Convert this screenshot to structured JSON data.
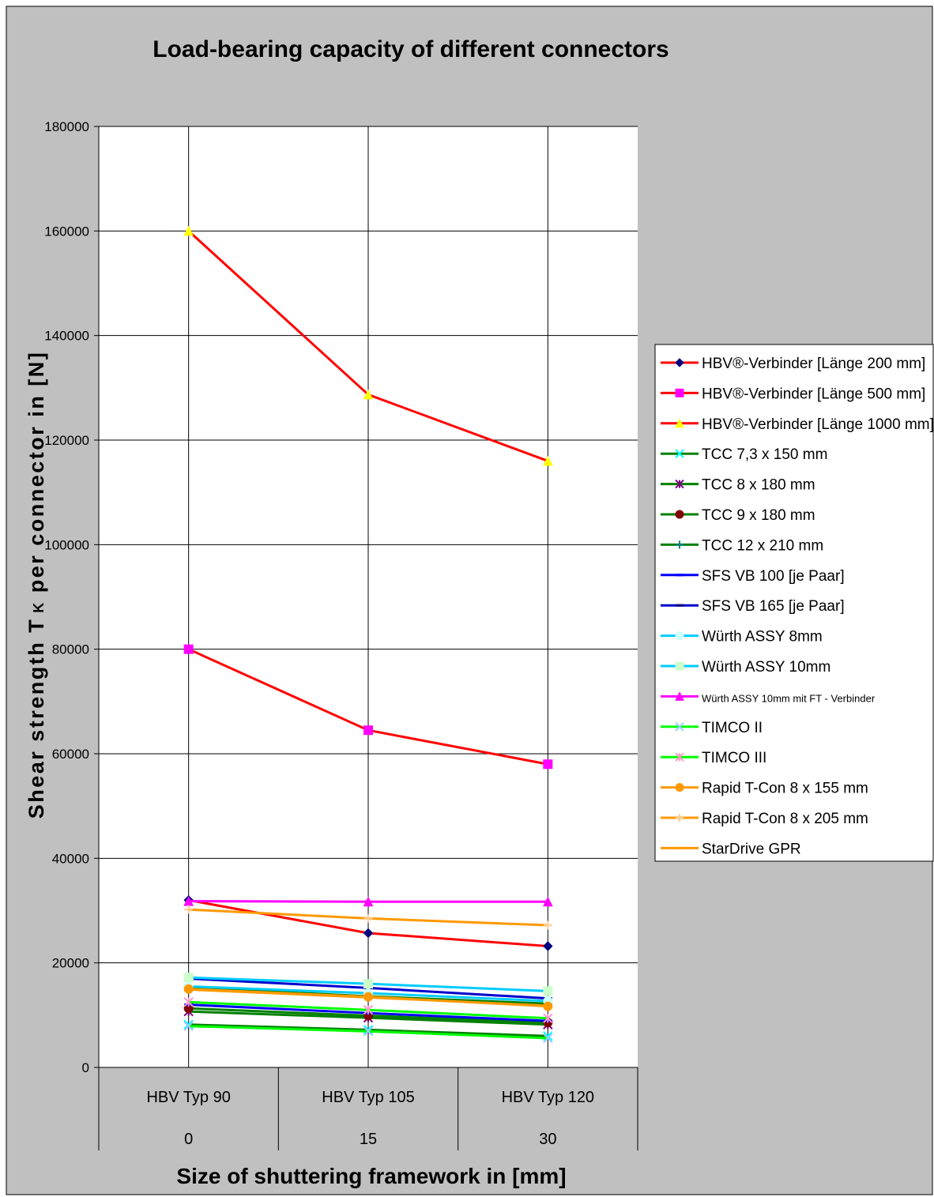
{
  "chart_data": {
    "type": "line",
    "title": "Load-bearing capacity of different connectors",
    "xlabel": "Size of shuttering framework in [mm]",
    "ylabel": "Shear strength T",
    "ylabel_sub": "K",
    "ylabel_tail": " per connector in [N]",
    "categories": [
      "HBV Typ 90",
      "HBV Typ 105",
      "HBV Typ 120"
    ],
    "x_values": [
      "0",
      "15",
      "30"
    ],
    "ylim": [
      0,
      180000
    ],
    "yticks": [
      0,
      20000,
      40000,
      60000,
      80000,
      100000,
      120000,
      140000,
      160000,
      180000
    ],
    "grid": true,
    "legend_position": "right",
    "series": [
      {
        "name": "HBV®-Verbinder [Länge 200 mm]",
        "color": "#ff0000",
        "marker": "diamond",
        "marker_color": "#000080",
        "values": [
          32000,
          25700,
          23200
        ]
      },
      {
        "name": "HBV®-Verbinder [Länge 500 mm]",
        "color": "#ff0000",
        "marker": "square",
        "marker_color": "#ff00ff",
        "values": [
          80000,
          64500,
          58000
        ]
      },
      {
        "name": "HBV®-Verbinder [Länge 1000 mm]",
        "color": "#ff0000",
        "marker": "triangle",
        "marker_color": "#ffff00",
        "values": [
          160000,
          128700,
          116000
        ]
      },
      {
        "name": "TCC 7,3 x 150 mm",
        "color": "#008000",
        "marker": "x",
        "marker_color": "#00ffff",
        "values": [
          8200,
          7200,
          6000
        ]
      },
      {
        "name": "TCC 8 x 180 mm",
        "color": "#008000",
        "marker": "star",
        "marker_color": "#800080",
        "values": [
          10700,
          9500,
          8200
        ]
      },
      {
        "name": "TCC 9 x 180 mm",
        "color": "#008000",
        "marker": "circle",
        "marker_color": "#800000",
        "values": [
          11300,
          9900,
          8600
        ]
      },
      {
        "name": "TCC 12 x 210 mm",
        "color": "#008000",
        "marker": "plus",
        "marker_color": "#008080",
        "values": [
          15300,
          13600,
          12200
        ]
      },
      {
        "name": "SFS VB 100 [je Paar]",
        "color": "#0000ff",
        "marker": "dash",
        "marker_color": "#0000ff",
        "values": [
          12000,
          10400,
          8900
        ]
      },
      {
        "name": "SFS VB 165 [je Paar]",
        "color": "#0000cc",
        "marker": "dash",
        "marker_color": "#000080",
        "values": [
          17000,
          15200,
          13200
        ]
      },
      {
        "name": "Würth ASSY 8mm",
        "color": "#00ccff",
        "marker": "circle",
        "marker_color": "#ccffff",
        "values": [
          15500,
          14200,
          12700
        ]
      },
      {
        "name": "Würth ASSY 10mm",
        "color": "#00ccff",
        "marker": "square",
        "marker_color": "#ccffcc",
        "values": [
          17200,
          16000,
          14600
        ]
      },
      {
        "name": "Würth ASSY 10mm mit FT - Verbinder",
        "color": "#ff00ff",
        "marker": "triangle",
        "marker_color": "#ff00ff",
        "values": [
          31800,
          31700,
          31700
        ]
      },
      {
        "name": "TIMCO II",
        "color": "#00ff00",
        "marker": "x",
        "marker_color": "#99ccff",
        "values": [
          7900,
          6900,
          5600
        ]
      },
      {
        "name": "TIMCO III",
        "color": "#00ff00",
        "marker": "star",
        "marker_color": "#ff99cc",
        "values": [
          12500,
          11000,
          9400
        ]
      },
      {
        "name": "Rapid T-Con 8 x 155 mm",
        "color": "#ff9900",
        "marker": "circle",
        "marker_color": "#ff9900",
        "values": [
          15000,
          13500,
          11700
        ]
      },
      {
        "name": "Rapid T-Con 8 x 205 mm",
        "color": "#ff9900",
        "marker": "plus",
        "marker_color": "#ffcc99",
        "values": [
          30200,
          28500,
          27200
        ]
      },
      {
        "name": "StarDrive GPR",
        "color": "#ff9900",
        "marker": "dash",
        "marker_color": "#ff9900",
        "values": [
          14900,
          13400,
          11800
        ]
      }
    ]
  }
}
